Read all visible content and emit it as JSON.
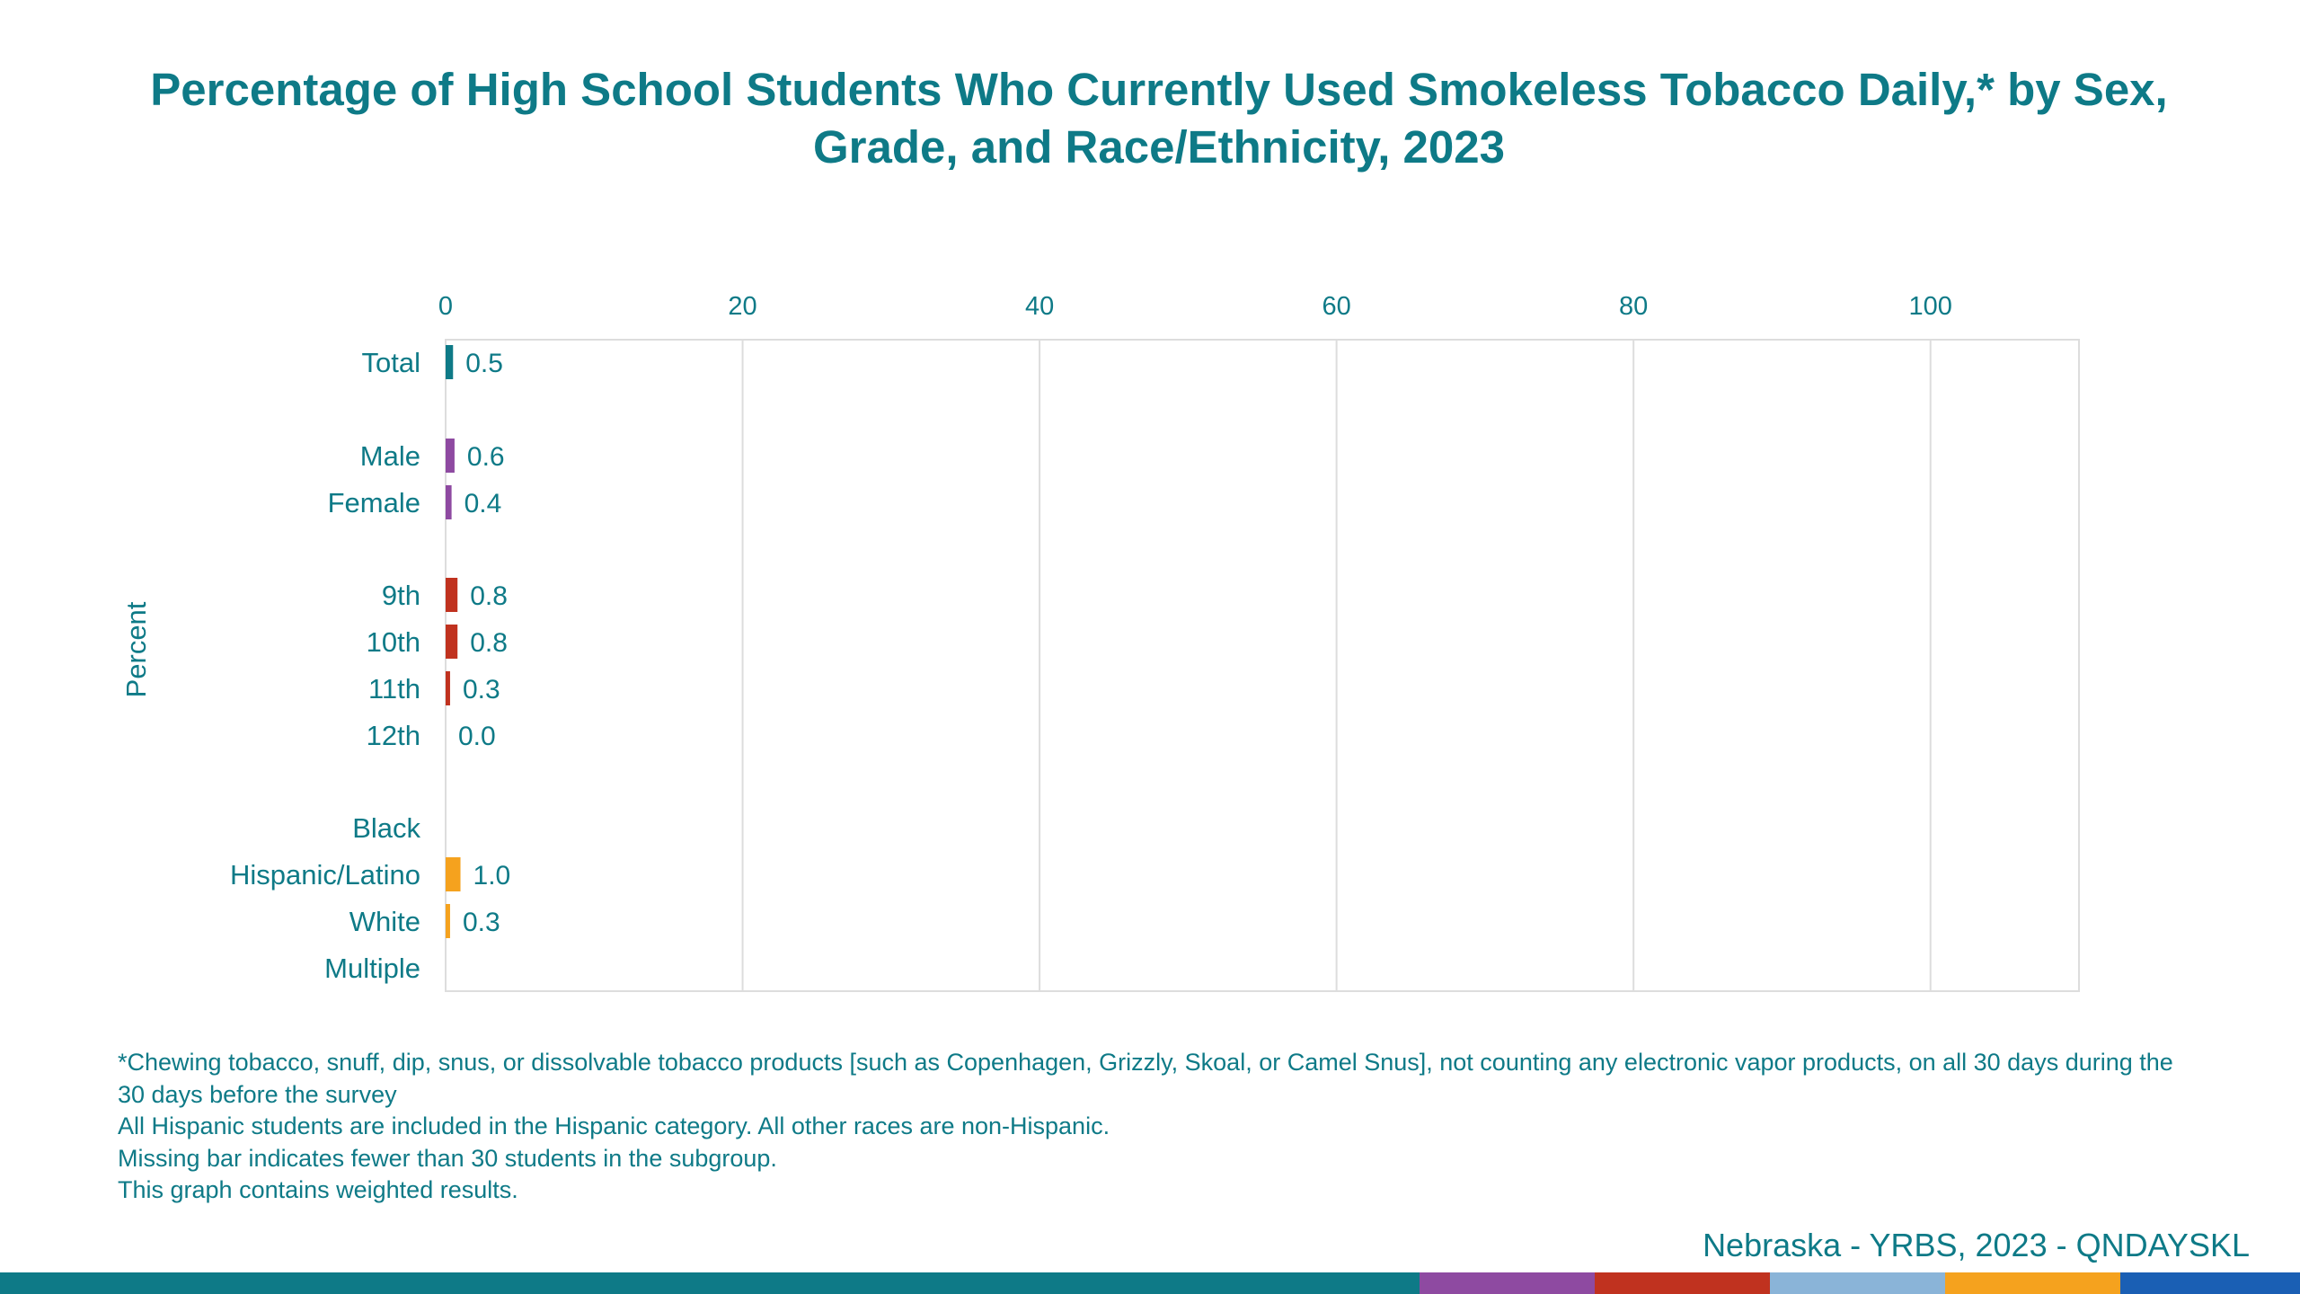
{
  "chart_data": {
    "type": "bar",
    "orientation": "horizontal",
    "title": "Percentage of High School Students Who Currently Used Smokeless Tobacco Daily,* by Sex, Grade, and Race/Ethnicity, 2023",
    "ylabel": "Percent",
    "xlim": [
      0,
      110
    ],
    "x_ticks": [
      0,
      20,
      40,
      60,
      80,
      100
    ],
    "grid": true,
    "categories": [
      "Total",
      "Male",
      "Female",
      "9th",
      "10th",
      "11th",
      "12th",
      "Black",
      "Hispanic/Latino",
      "White",
      "Multiple"
    ],
    "values": [
      0.5,
      0.6,
      0.4,
      0.8,
      0.8,
      0.3,
      0.0,
      null,
      1.0,
      0.3,
      null
    ],
    "value_labels": [
      "0.5",
      "0.6",
      "0.4",
      "0.8",
      "0.8",
      "0.3",
      "0.0",
      "",
      "1.0",
      "0.3",
      ""
    ],
    "colors": [
      "#0e7a87",
      "#8e4aa1",
      "#8e4aa1",
      "#c0321f",
      "#c0321f",
      "#c0321f",
      "#c0321f",
      "#f5a21e",
      "#f5a21e",
      "#f5a21e",
      "#f5a21e"
    ]
  },
  "footnotes": [
    "*Chewing tobacco, snuff, dip, snus, or dissolvable tobacco products [such as Copenhagen, Grizzly, Skoal, or Camel Snus], not counting any electronic vapor products, on all 30 days during the 30 days before the survey",
    "All Hispanic students are included in the Hispanic category.  All other races are non-Hispanic.",
    "Missing bar indicates fewer than 30 students in the subgroup.",
    "This graph contains weighted results."
  ],
  "source": "Nebraska - YRBS, 2023 - QNDAYSKL",
  "bottom_bar_colors": [
    "#0e7a87",
    "#8e4aa1",
    "#c0321f",
    "#8ab4d8",
    "#f5a21e",
    "#1a5fb4"
  ]
}
